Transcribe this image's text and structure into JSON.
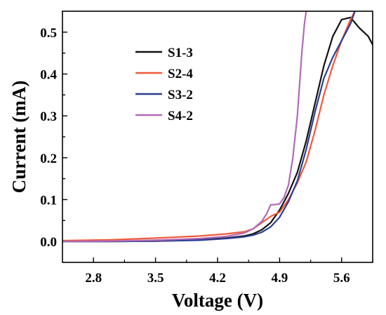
{
  "chart_data": {
    "type": "line",
    "xlabel": "Voltage (V)",
    "ylabel": "Current (mA)",
    "xlim": [
      2.45,
      5.95
    ],
    "ylim": [
      -0.05,
      0.55
    ],
    "x_ticks": [
      "2.8",
      "3.5",
      "4.2",
      "4.9",
      "5.6"
    ],
    "y_ticks": [
      "0.0",
      "0.1",
      "0.2",
      "0.3",
      "0.4",
      "0.5"
    ],
    "legend_position": "left",
    "series": [
      {
        "name": "S1-3",
        "color": "#111111",
        "x": [
          2.45,
          3.0,
          3.5,
          4.0,
          4.3,
          4.5,
          4.6,
          4.7,
          4.8,
          4.9,
          5.0,
          5.1,
          5.2,
          5.3,
          5.4,
          5.5,
          5.6,
          5.7,
          5.8,
          5.9,
          5.95
        ],
        "y": [
          0.0,
          0.0,
          0.001,
          0.004,
          0.008,
          0.013,
          0.018,
          0.028,
          0.045,
          0.075,
          0.115,
          0.165,
          0.24,
          0.33,
          0.42,
          0.49,
          0.53,
          0.535,
          0.51,
          0.49,
          0.47
        ]
      },
      {
        "name": "S2-4",
        "color": "#f05a3a",
        "x": [
          2.45,
          3.0,
          3.5,
          4.0,
          4.3,
          4.5,
          4.6,
          4.7,
          4.8,
          4.9,
          5.0,
          5.1,
          5.2,
          5.3,
          5.4,
          5.5,
          5.6,
          5.7,
          5.75
        ],
        "y": [
          0.002,
          0.004,
          0.008,
          0.013,
          0.018,
          0.023,
          0.03,
          0.045,
          0.06,
          0.07,
          0.1,
          0.14,
          0.19,
          0.265,
          0.35,
          0.42,
          0.48,
          0.53,
          0.55
        ]
      },
      {
        "name": "S3-2",
        "color": "#2c3e8f",
        "x": [
          2.45,
          3.0,
          3.5,
          4.0,
          4.3,
          4.5,
          4.6,
          4.7,
          4.8,
          4.9,
          5.0,
          5.1,
          5.2,
          5.3,
          5.4,
          5.5,
          5.6,
          5.7,
          5.75
        ],
        "y": [
          0.0,
          0.0,
          0.001,
          0.003,
          0.007,
          0.011,
          0.015,
          0.022,
          0.035,
          0.058,
          0.095,
          0.145,
          0.22,
          0.31,
          0.39,
          0.44,
          0.48,
          0.52,
          0.55
        ]
      },
      {
        "name": "S4-2",
        "color": "#b06ab8",
        "x": [
          2.45,
          3.0,
          3.5,
          4.0,
          4.3,
          4.5,
          4.6,
          4.7,
          4.75,
          4.8,
          4.85,
          4.9,
          4.95,
          5.0,
          5.05,
          5.1,
          5.15,
          5.18,
          5.2
        ],
        "y": [
          0.0,
          0.001,
          0.003,
          0.007,
          0.012,
          0.02,
          0.03,
          0.048,
          0.065,
          0.088,
          0.088,
          0.09,
          0.105,
          0.135,
          0.2,
          0.3,
          0.45,
          0.52,
          0.55
        ]
      }
    ]
  }
}
